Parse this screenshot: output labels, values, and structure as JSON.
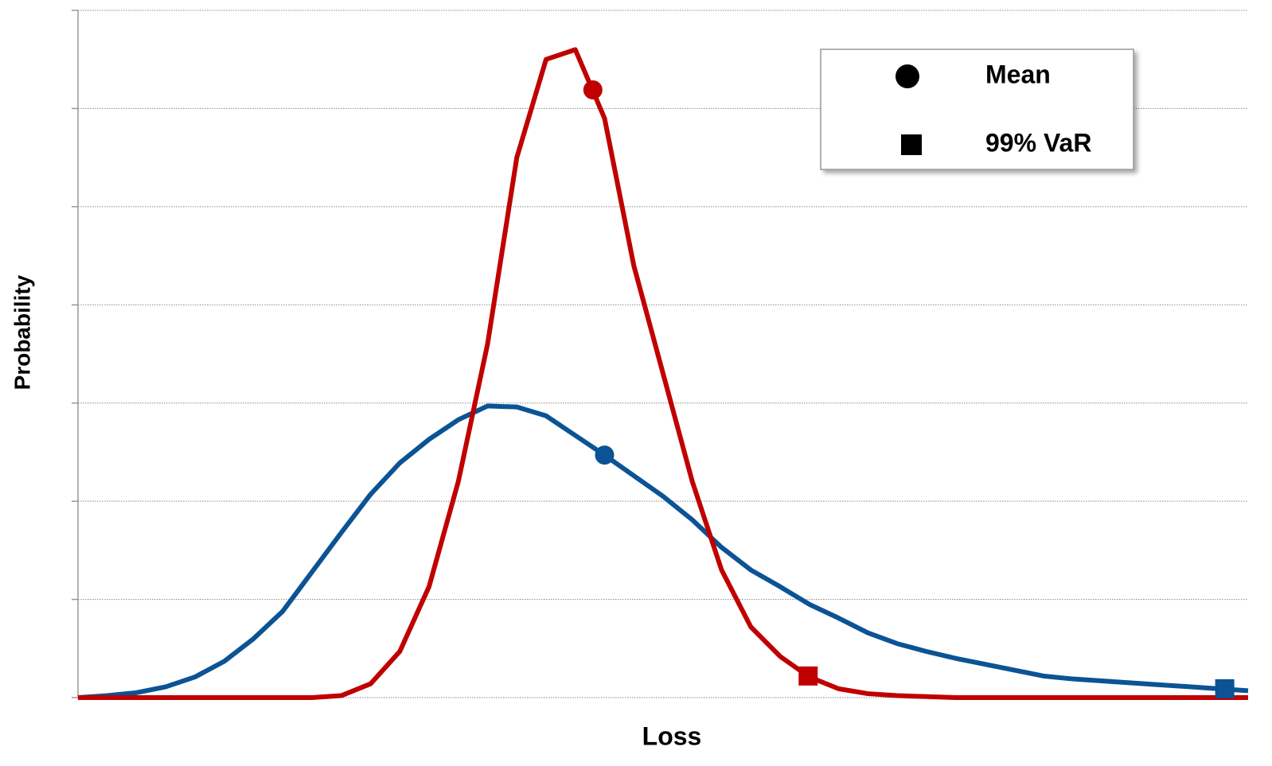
{
  "chart_data": {
    "type": "line",
    "xlabel": "Loss",
    "ylabel": "Probability",
    "x": [
      0,
      2.5,
      5,
      7.5,
      10,
      12.5,
      15,
      17.5,
      20,
      22.5,
      25,
      27.5,
      30,
      32.5,
      35,
      37.5,
      40,
      42.5,
      45,
      47.5,
      50,
      52.5,
      55,
      57.5,
      60,
      62.5,
      65,
      67.5,
      70,
      72.5,
      75,
      77.5,
      80,
      82.5,
      85,
      87.5,
      90,
      92.5,
      95,
      97.5,
      100
    ],
    "series": [
      {
        "color": "#0b5394",
        "values": [
          0,
          0.02,
          0.05,
          0.11,
          0.21,
          0.37,
          0.6,
          0.88,
          1.28,
          1.68,
          2.07,
          2.39,
          2.63,
          2.83,
          2.97,
          2.96,
          2.87,
          2.67,
          2.47,
          2.26,
          2.05,
          1.81,
          1.53,
          1.3,
          1.13,
          0.95,
          0.81,
          0.66,
          0.55,
          0.47,
          0.4,
          0.34,
          0.28,
          0.22,
          0.19,
          0.17,
          0.15,
          0.13,
          0.11,
          0.09,
          0.07
        ],
        "mean_x": 45,
        "mean_y": 2.47,
        "var_x": 98,
        "var_y": 0.09
      },
      {
        "color": "#c00000",
        "values": [
          0,
          0,
          0,
          0,
          0,
          0,
          0,
          0,
          0,
          0.02,
          0.14,
          0.47,
          1.13,
          2.2,
          3.6,
          5.5,
          6.5,
          6.6,
          5.9,
          4.4,
          3.3,
          2.2,
          1.3,
          0.72,
          0.42,
          0.21,
          0.09,
          0.04,
          0.02,
          0.01,
          0,
          0,
          0,
          0,
          0,
          0,
          0,
          0,
          0,
          0,
          0
        ],
        "mean_x": 44,
        "mean_y": 6.19,
        "var_x": 62.4,
        "var_y": 0.22
      }
    ],
    "xlim": [
      0,
      100
    ],
    "ylim": [
      0,
      7
    ],
    "yticks": [
      0,
      1,
      2,
      3,
      4,
      5,
      6,
      7
    ],
    "grid": true,
    "legend": [
      {
        "label": "Mean",
        "marker": "circle"
      },
      {
        "label": "99% VaR",
        "marker": "square"
      }
    ]
  }
}
